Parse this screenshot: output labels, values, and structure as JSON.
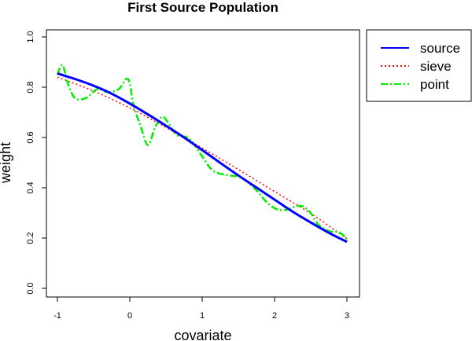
{
  "chart_data": {
    "type": "line",
    "title": "First Source Population",
    "xlabel": "covariate",
    "ylabel": "weight",
    "xlim": [
      -1,
      3
    ],
    "ylim": [
      0,
      1
    ],
    "x_ticks": [
      -1,
      0,
      1,
      2,
      3
    ],
    "x_tick_labels": [
      "-1",
      "0",
      "1",
      "2",
      "3"
    ],
    "y_ticks": [
      0,
      0.2,
      0.4,
      0.6,
      0.8,
      1
    ],
    "y_tick_labels": [
      "0.0",
      "0.2",
      "0.4",
      "0.6",
      "0.8",
      "1.0"
    ],
    "grid": false,
    "legend_position": "outside-top-right",
    "series": [
      {
        "name": "source",
        "color": "#0000ff",
        "style": "solid",
        "x": [
          -1,
          -0.75,
          -0.5,
          -0.25,
          0,
          0.25,
          0.5,
          0.75,
          1,
          1.25,
          1.5,
          1.75,
          2,
          2.25,
          2.5,
          2.75,
          3
        ],
        "y": [
          0.855,
          0.832,
          0.806,
          0.774,
          0.735,
          0.692,
          0.647,
          0.6,
          0.55,
          0.499,
          0.449,
          0.401,
          0.353,
          0.305,
          0.262,
          0.221,
          0.185
        ]
      },
      {
        "name": "sieve",
        "color": "#ff0000",
        "style": "dotted",
        "x": [
          -1,
          -0.5,
          0,
          0.5,
          1,
          1.5,
          2,
          2.5,
          3
        ],
        "y": [
          0.84,
          0.785,
          0.718,
          0.64,
          0.558,
          0.473,
          0.385,
          0.298,
          0.198
        ]
      },
      {
        "name": "point",
        "color": "#00ee00",
        "style": "dashdot",
        "x": [
          -1,
          -0.93,
          -0.85,
          -0.75,
          -0.6,
          -0.45,
          -0.3,
          -0.15,
          -0.05,
          0,
          0.05,
          0.15,
          0.25,
          0.35,
          0.45,
          0.55,
          0.65,
          0.8,
          0.9,
          1,
          1.15,
          1.35,
          1.55,
          1.75,
          1.9,
          2.05,
          2.2,
          2.3,
          2.4,
          2.5,
          2.6,
          2.75,
          2.9,
          3
        ],
        "y": [
          0.85,
          0.888,
          0.81,
          0.755,
          0.758,
          0.792,
          0.78,
          0.793,
          0.833,
          0.815,
          0.73,
          0.645,
          0.57,
          0.64,
          0.683,
          0.65,
          0.61,
          0.6,
          0.568,
          0.525,
          0.468,
          0.45,
          0.44,
          0.39,
          0.34,
          0.313,
          0.315,
          0.327,
          0.325,
          0.3,
          0.255,
          0.228,
          0.222,
          0.195
        ]
      }
    ]
  }
}
